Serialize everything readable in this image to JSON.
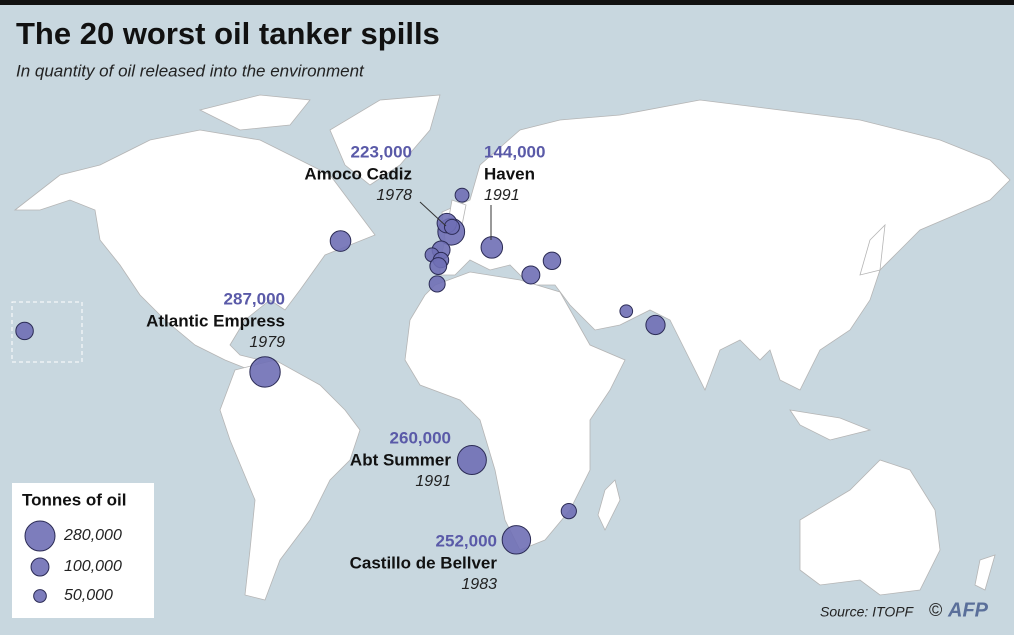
{
  "title": "The 20 worst oil tanker spills",
  "subtitle": "In quantity of oil released into the environment",
  "spills": [
    {
      "name": "Amoco Cadiz",
      "year": "1978",
      "value": 223000,
      "value_label": "223,000",
      "lon": -4.7,
      "lat": 48.6
    },
    {
      "name": "Haven",
      "year": "1991",
      "value": 144000,
      "value_label": "144,000",
      "lon": 8.9,
      "lat": 44.4
    },
    {
      "name": "Atlantic Empress",
      "year": "1979",
      "value": 287000,
      "value_label": "287,000",
      "lon": -60.7,
      "lat": 11.0
    },
    {
      "name": "Abt Summer",
      "year": "1991",
      "value": 260000,
      "value_label": "260,000",
      "lon": 2.1,
      "lat": -12.6
    },
    {
      "name": "Castillo de Bellver",
      "year": "1983",
      "value": 252000,
      "value_label": "252,000",
      "lon": 16.2,
      "lat": -34.0
    },
    {
      "value": 132000,
      "lon": -41.8,
      "lat": 46.1
    },
    {
      "value": 95000,
      "lon": -134.6,
      "lat": 22.0
    },
    {
      "value": 60000,
      "lon": -1.1,
      "lat": 58.4
    },
    {
      "value": 119000,
      "lon": -6.3,
      "lat": 50.9
    },
    {
      "value": 70000,
      "lon": -4.5,
      "lat": 49.9
    },
    {
      "value": 100000,
      "lon": -7.9,
      "lat": 43.7
    },
    {
      "value": 60000,
      "lon": -10.8,
      "lat": 42.4
    },
    {
      "value": 74000,
      "lon": -7.8,
      "lat": 41.0
    },
    {
      "value": 88000,
      "lon": -8.6,
      "lat": 39.4
    },
    {
      "value": 80000,
      "lon": -8.8,
      "lat": 34.6
    },
    {
      "value": 95000,
      "lon": 28.2,
      "lat": 40.8
    },
    {
      "value": 100000,
      "lon": 21.0,
      "lat": 37.0
    },
    {
      "value": 50000,
      "lon": 49.8,
      "lat": 27.3
    },
    {
      "value": 115000,
      "lon": 58.4,
      "lat": 23.6
    },
    {
      "value": 72000,
      "lon": 32.0,
      "lat": -26.3
    }
  ],
  "legend": {
    "title": "Tonnes of oil",
    "items": [
      {
        "value": 280000,
        "label": "280,000"
      },
      {
        "value": 100000,
        "label": "100,000"
      },
      {
        "value": 50000,
        "label": "50,000"
      }
    ]
  },
  "source": "Source: ITOPF",
  "credit": "©",
  "logo": "AFP"
}
